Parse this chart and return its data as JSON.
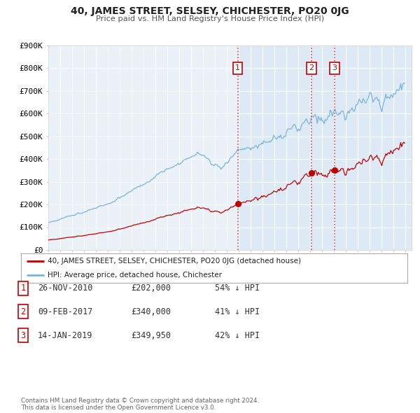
{
  "title": "40, JAMES STREET, SELSEY, CHICHESTER, PO20 0JG",
  "subtitle": "Price paid vs. HM Land Registry's House Price Index (HPI)",
  "background_color": "#ffffff",
  "plot_bg_color": "#eaf1f8",
  "grid_color": "#ffffff",
  "highlight_bg_color": "#ddeaf6",
  "ylim": [
    0,
    900000
  ],
  "yticks": [
    0,
    100000,
    200000,
    300000,
    400000,
    500000,
    600000,
    700000,
    800000,
    900000
  ],
  "ytick_labels": [
    "£0",
    "£100K",
    "£200K",
    "£300K",
    "£400K",
    "£500K",
    "£600K",
    "£700K",
    "£800K",
    "£900K"
  ],
  "year_start": 1995,
  "year_end": 2025,
  "hpi_color": "#7ab3d9",
  "price_color": "#c00000",
  "sale_marker_color": "#c00000",
  "vline_color": "#d05050",
  "transactions": [
    {
      "date_float": 2010.9,
      "price": 202000,
      "label": "1"
    },
    {
      "date_float": 2017.1,
      "price": 340000,
      "label": "2"
    },
    {
      "date_float": 2019.04,
      "price": 349950,
      "label": "3"
    }
  ],
  "legend_property_label": "40, JAMES STREET, SELSEY, CHICHESTER, PO20 0JG (detached house)",
  "legend_hpi_label": "HPI: Average price, detached house, Chichester",
  "table_rows": [
    {
      "num": "1",
      "date": "26-NOV-2010",
      "price": "£202,000",
      "hpi_pct": "54% ↓ HPI"
    },
    {
      "num": "2",
      "date": "09-FEB-2017",
      "price": "£340,000",
      "hpi_pct": "41% ↓ HPI"
    },
    {
      "num": "3",
      "date": "14-JAN-2019",
      "price": "£349,950",
      "hpi_pct": "42% ↓ HPI"
    }
  ],
  "footnote": "Contains HM Land Registry data © Crown copyright and database right 2024.\nThis data is licensed under the Open Government Licence v3.0."
}
